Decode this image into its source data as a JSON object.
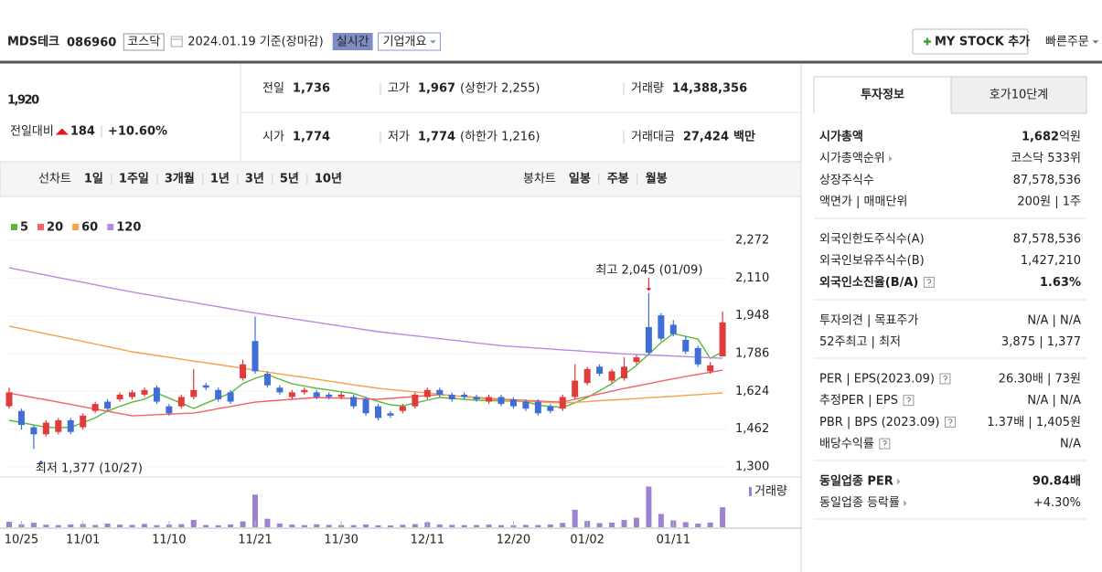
{
  "header": {
    "title": "MDS테크",
    "code": "086960",
    "market": "코스닥",
    "date": "2024.01.19 기준(장마감)",
    "realtime": "실시간",
    "company_info": "기업개요",
    "my_stock": "MY STOCK 추가",
    "quick_order": "빠른주문"
  },
  "price": {
    "current": "1,920",
    "change_label": "전일대비",
    "change": "184",
    "change_pct": "+10.60%",
    "stats": [
      {
        "label": "전일",
        "value": "1,736"
      },
      {
        "label": "고가",
        "value": "1,967",
        "note": "(상한가 2,255)"
      },
      {
        "label": "거래량",
        "value": "14,388,356"
      },
      {
        "label": "시가",
        "value": "1,774"
      },
      {
        "label": "저가",
        "value": "1,774",
        "note": "(하한가 1,216)"
      },
      {
        "label": "거래대금",
        "value": "27,424",
        "unit": "백만"
      }
    ]
  },
  "periods": {
    "line_label": "선차트",
    "line": [
      "1일",
      "1주일",
      "3개월",
      "1년",
      "3년",
      "5년",
      "10년"
    ],
    "candle_label": "봉차트",
    "candle": [
      "일봉",
      "주봉",
      "월봉"
    ],
    "active_candle": 0
  },
  "chart_data": {
    "type": "candlestick",
    "categories": [
      null,
      "10/25",
      null,
      null,
      null,
      null,
      "11/01",
      null,
      null,
      null,
      null,
      null,
      null,
      "11/10",
      null,
      null,
      null,
      null,
      null,
      null,
      "11/21",
      null,
      null,
      null,
      null,
      null,
      null,
      "11/30",
      null,
      null,
      null,
      null,
      null,
      null,
      "12/11",
      null,
      null,
      null,
      null,
      null,
      null,
      "12/20",
      null,
      null,
      null,
      null,
      null,
      "01/02",
      null,
      null,
      null,
      null,
      null,
      null,
      "01/11",
      null,
      null,
      null,
      null
    ],
    "open": [
      1560,
      1540,
      1470,
      1440,
      1450,
      1500,
      1470,
      1540,
      1580,
      1590,
      1600,
      1610,
      1640,
      1560,
      1560,
      1600,
      1650,
      1630,
      1620,
      1680,
      1840,
      1700,
      1640,
      1600,
      1620,
      1620,
      1610,
      1600,
      1600,
      1590,
      1560,
      1530,
      1540,
      1560,
      1600,
      1630,
      1610,
      1610,
      1600,
      1580,
      1600,
      1590,
      1580,
      1580,
      1560,
      1550,
      1600,
      1660,
      1730,
      1670,
      1680,
      1750,
      1900,
      1950,
      1910,
      1845,
      1810,
      1710,
      1774
    ],
    "high": [
      1640,
      1550,
      1480,
      1500,
      1510,
      1510,
      1530,
      1580,
      1590,
      1620,
      1630,
      1640,
      1650,
      1570,
      1610,
      1720,
      1660,
      1640,
      1630,
      1760,
      1945,
      1710,
      1650,
      1630,
      1640,
      1630,
      1620,
      1620,
      1610,
      1600,
      1570,
      1540,
      1570,
      1620,
      1640,
      1640,
      1620,
      1620,
      1610,
      1610,
      1610,
      1600,
      1590,
      1590,
      1570,
      1610,
      1740,
      1730,
      1740,
      1720,
      1770,
      1780,
      2045,
      1960,
      1930,
      1860,
      1820,
      1750,
      1967
    ],
    "low": [
      1550,
      1460,
      1377,
      1430,
      1440,
      1440,
      1460,
      1530,
      1540,
      1580,
      1590,
      1600,
      1570,
      1520,
      1550,
      1590,
      1630,
      1580,
      1570,
      1670,
      1700,
      1640,
      1610,
      1590,
      1610,
      1590,
      1590,
      1590,
      1550,
      1520,
      1500,
      1510,
      1530,
      1550,
      1590,
      1600,
      1580,
      1590,
      1580,
      1570,
      1560,
      1550,
      1540,
      1520,
      1530,
      1540,
      1590,
      1650,
      1690,
      1660,
      1670,
      1740,
      1780,
      1840,
      1860,
      1785,
      1730,
      1700,
      1774
    ],
    "close": [
      1620,
      1480,
      1440,
      1490,
      1500,
      1450,
      1520,
      1570,
      1550,
      1610,
      1620,
      1630,
      1580,
      1530,
      1600,
      1630,
      1640,
      1590,
      1580,
      1740,
      1710,
      1650,
      1620,
      1620,
      1630,
      1600,
      1600,
      1610,
      1560,
      1530,
      1510,
      1520,
      1560,
      1610,
      1630,
      1610,
      1590,
      1600,
      1590,
      1600,
      1570,
      1560,
      1550,
      1530,
      1540,
      1600,
      1670,
      1720,
      1700,
      1710,
      1730,
      1770,
      1790,
      1850,
      1870,
      1795,
      1740,
      1736,
      1920
    ],
    "up_color": "#e23b3b",
    "down_color": "#3f6fd6",
    "series": [
      {
        "name": "5",
        "color": "#5cb83c",
        "values": [
          1500,
          1490,
          1480,
          1470,
          1468,
          1470,
          1490,
          1510,
          1540,
          1560,
          1578,
          1590,
          1617,
          1595,
          1573,
          1551,
          1573,
          1595,
          1617,
          1657,
          1680,
          1696,
          1676,
          1657,
          1647,
          1637,
          1630,
          1622,
          1615,
          1598,
          1581,
          1566,
          1562,
          1574,
          1586,
          1598,
          1594,
          1590,
          1586,
          1585,
          1583,
          1582,
          1580,
          1565,
          1560,
          1555,
          1575,
          1598,
          1627,
          1657,
          1696,
          1735,
          1784,
          1833,
          1872,
          1860,
          1848,
          1766,
          1794
        ]
      },
      {
        "name": "20",
        "color": "#f06464",
        "values": [
          1617,
          1607,
          1597,
          1588,
          1578,
          1568,
          1558,
          1548,
          1539,
          1529,
          1519,
          1521,
          1524,
          1526,
          1529,
          1531,
          1540,
          1550,
          1559,
          1569,
          1578,
          1582,
          1586,
          1590,
          1594,
          1598,
          1596,
          1595,
          1593,
          1592,
          1590,
          1594,
          1598,
          1602,
          1606,
          1610,
          1606,
          1602,
          1598,
          1594,
          1590,
          1588,
          1585,
          1583,
          1580,
          1578,
          1590,
          1602,
          1613,
          1625,
          1637,
          1647,
          1657,
          1668,
          1678,
          1688,
          1697,
          1706,
          1715
        ]
      },
      {
        "name": "60",
        "color": "#f5a24a",
        "values": [
          1904,
          1893,
          1882,
          1871,
          1860,
          1849,
          1838,
          1827,
          1816,
          1805,
          1794,
          1786,
          1778,
          1770,
          1762,
          1754,
          1747,
          1739,
          1731,
          1723,
          1715,
          1707,
          1699,
          1691,
          1684,
          1676,
          1668,
          1660,
          1652,
          1645,
          1637,
          1632,
          1627,
          1622,
          1617,
          1612,
          1606,
          1601,
          1596,
          1591,
          1586,
          1584,
          1581,
          1579,
          1576,
          1574,
          1577,
          1580,
          1584,
          1587,
          1590,
          1593,
          1597,
          1600,
          1603,
          1607,
          1610,
          1614,
          1617
        ]
      },
      {
        "name": "120",
        "color": "#b98be0",
        "values": [
          2154,
          2144,
          2133,
          2123,
          2112,
          2102,
          2092,
          2081,
          2071,
          2060,
          2050,
          2041,
          2032,
          2023,
          2014,
          2005,
          1996,
          1987,
          1978,
          1969,
          1960,
          1952,
          1944,
          1936,
          1928,
          1920,
          1912,
          1904,
          1896,
          1888,
          1880,
          1874,
          1868,
          1862,
          1856,
          1850,
          1844,
          1838,
          1832,
          1826,
          1820,
          1816,
          1813,
          1809,
          1806,
          1802,
          1799,
          1795,
          1792,
          1788,
          1785,
          1783,
          1780,
          1778,
          1776,
          1773,
          1771,
          1768,
          1766
        ]
      }
    ],
    "volume": {
      "name": "거래량",
      "color": "#9c82d0",
      "values": [
        3900000,
        2100000,
        3200000,
        1800000,
        1500000,
        2000000,
        2300000,
        1600000,
        2600000,
        1900000,
        1700000,
        2400000,
        1500000,
        1900000,
        2200000,
        5300000,
        1600000,
        1400000,
        2000000,
        4200000,
        23500000,
        6100000,
        2700000,
        1900000,
        1500000,
        2100000,
        1700000,
        1600000,
        1500000,
        2000000,
        1400000,
        1300000,
        1800000,
        2200000,
        3600000,
        2000000,
        1700000,
        1500000,
        1600000,
        1900000,
        1500000,
        1400000,
        1700000,
        1600000,
        2000000,
        3100000,
        12600000,
        4500000,
        3000000,
        3300000,
        5200000,
        6800000,
        29300000,
        9600000,
        4900000,
        3700000,
        2600000,
        3400000,
        14388356
      ]
    },
    "ylim": [
      1300,
      2272
    ],
    "yticks": [
      {
        "value": 2272,
        "label": "2,272"
      },
      {
        "value": 2110,
        "label": "2,110"
      },
      {
        "value": 1948,
        "label": "1,948"
      },
      {
        "value": 1786,
        "label": "1,786"
      },
      {
        "value": 1624,
        "label": "1,624"
      },
      {
        "value": 1462,
        "label": "1,462"
      },
      {
        "value": 1300,
        "label": "1,300"
      }
    ],
    "grid": true,
    "annotations": {
      "high": "최고 2,045 (01/09)",
      "low": "최저 1,377 (10/27)"
    }
  },
  "info": {
    "tabs": [
      "투자정보",
      "호가10단계"
    ],
    "active_tab": 0,
    "groups": [
      [
        {
          "label": "시가총액",
          "value": "1,682",
          "unit": "억원",
          "bold": true
        },
        {
          "label": "시가총액순위",
          "arrow": true,
          "value": "코스닥 533위"
        },
        {
          "label": "상장주식수",
          "value": "87,578,536"
        },
        {
          "label": "액면가 | 매매단위",
          "value": "200원 | 1주"
        }
      ],
      [
        {
          "label": "외국인한도주식수(A)",
          "value": "87,578,536"
        },
        {
          "label": "외국인보유주식수(B)",
          "value": "1,427,210"
        },
        {
          "label": "외국인소진율(B/A)",
          "help": true,
          "value": "1.63%",
          "bold": true
        }
      ],
      [
        {
          "label": "투자의견 | 목표주가",
          "value": "N/A | N/A"
        },
        {
          "label": "52주최고 | 최저",
          "value": "3,875 | 1,377"
        }
      ],
      [
        {
          "label": "PER | EPS(2023.09)",
          "help": true,
          "value": "26.30배 | 73원"
        },
        {
          "label": "추정PER | EPS",
          "help": true,
          "value": "N/A | N/A"
        },
        {
          "label": "PBR | BPS (2023.09)",
          "help": true,
          "value": "1.37배 | 1,405원"
        },
        {
          "label": "배당수익률",
          "help": true,
          "value": "N/A"
        }
      ],
      [
        {
          "label": "동일업종 PER",
          "arrow": true,
          "value": "90.84배",
          "bold": true
        },
        {
          "label": "동일업종 등락률",
          "arrow": true,
          "value": "+4.30%",
          "color": "#e8141e"
        }
      ]
    ]
  }
}
